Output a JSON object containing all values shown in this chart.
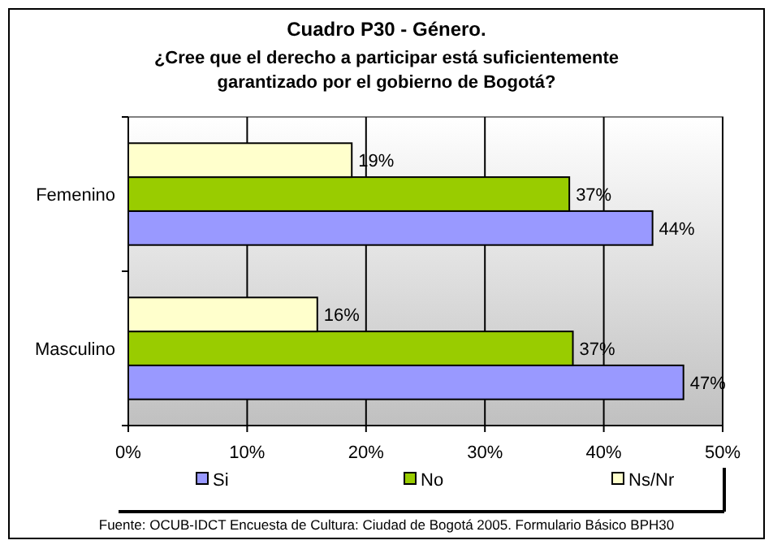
{
  "chart_data": {
    "type": "bar",
    "orientation": "horizontal",
    "title": "Cuadro P30 - Género.",
    "subtitle": "¿Cree que el derecho a participar está suficientemente garantizado por el gobierno de Bogotá?",
    "categories": [
      "Femenino",
      "Masculino"
    ],
    "series": [
      {
        "name": "Si",
        "color": "#9999ff",
        "values": [
          44.1,
          46.7
        ],
        "value_labels": [
          "44%",
          "47%"
        ]
      },
      {
        "name": "No",
        "color": "#99cc00",
        "values": [
          37.1,
          37.4
        ],
        "value_labels": [
          "37%",
          "37%"
        ]
      },
      {
        "name": "Ns/Nr",
        "color": "#ffffcc",
        "values": [
          18.8,
          15.9
        ],
        "value_labels": [
          "19%",
          "16%"
        ]
      }
    ],
    "xlim": [
      0,
      50
    ],
    "xticks": [
      {
        "value": 0,
        "label": "0%"
      },
      {
        "value": 10,
        "label": "10%"
      },
      {
        "value": 20,
        "label": "20%"
      },
      {
        "value": 30,
        "label": "30%"
      },
      {
        "value": 40,
        "label": "40%"
      },
      {
        "value": 50,
        "label": "50%"
      }
    ],
    "grid": "x",
    "legend": "bottom",
    "annotations": [
      "Fuente: OCUB-IDCT Encuesta de Cultura: Ciudad de Bogotá 2005. Formulario Básico BPH30"
    ]
  }
}
